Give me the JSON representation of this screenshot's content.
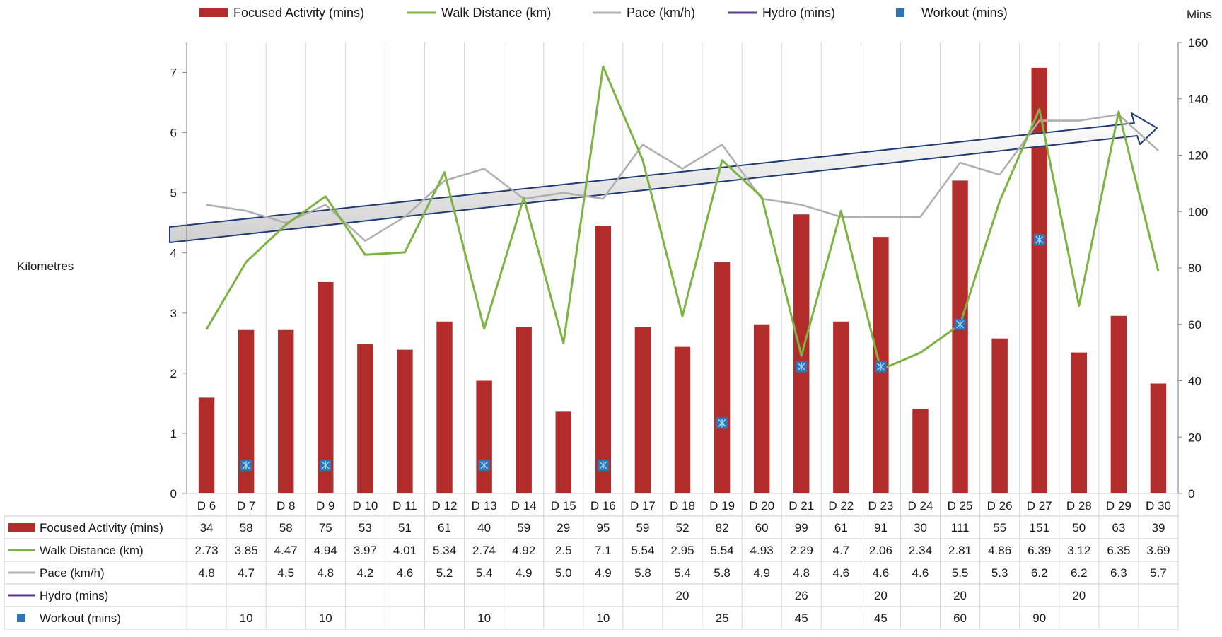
{
  "chart_data": {
    "type": "bar",
    "categories": [
      "D 6",
      "D 7",
      "D 8",
      "D 9",
      "D 10",
      "D 11",
      "D 12",
      "D 13",
      "D 14",
      "D 15",
      "D 16",
      "D 17",
      "D 18",
      "D 19",
      "D 20",
      "D 21",
      "D 22",
      "D 23",
      "D 24",
      "D 25",
      "D 26",
      "D 27",
      "D 28",
      "D 29",
      "D 30"
    ],
    "series": [
      {
        "name": "Focused Activity (mins)",
        "kind": "bar",
        "axis": "right",
        "color": "#B22C2C",
        "values": [
          34,
          58,
          58,
          75,
          53,
          51,
          61,
          40,
          59,
          29,
          95,
          59,
          52,
          82,
          60,
          99,
          61,
          91,
          30,
          111,
          55,
          151,
          50,
          63,
          39
        ]
      },
      {
        "name": "Walk Distance (km)",
        "kind": "line",
        "axis": "left",
        "color": "#7CB342",
        "values": [
          2.73,
          3.85,
          4.47,
          4.94,
          3.97,
          4.01,
          5.34,
          2.74,
          4.92,
          2.5,
          7.1,
          5.54,
          2.95,
          5.54,
          4.93,
          2.29,
          4.7,
          2.06,
          2.34,
          2.81,
          4.86,
          6.39,
          3.12,
          6.35,
          3.69
        ]
      },
      {
        "name": "Pace (km/h)",
        "kind": "line",
        "axis": "left",
        "color": "#B0B0B0",
        "values": [
          "4.8",
          "4.7",
          "4.5",
          "4.8",
          "4.2",
          "4.6",
          "5.2",
          "5.4",
          "4.9",
          "5.0",
          "4.9",
          "5.8",
          "5.4",
          "5.8",
          "4.9",
          "4.8",
          "4.6",
          "4.6",
          "4.6",
          "5.5",
          "5.3",
          "6.2",
          "6.2",
          "6.3",
          "5.7"
        ]
      },
      {
        "name": "Hydro (mins)",
        "kind": "line",
        "axis": "right",
        "color": "#5B3A8C",
        "values": [
          null,
          null,
          null,
          null,
          null,
          null,
          null,
          null,
          null,
          null,
          null,
          null,
          20,
          null,
          null,
          26,
          null,
          20,
          null,
          20,
          null,
          null,
          20,
          null,
          null
        ]
      },
      {
        "name": "Workout (mins)",
        "kind": "marker",
        "axis": "right",
        "color": "#2E75B6",
        "values": [
          null,
          10,
          null,
          10,
          null,
          null,
          null,
          10,
          null,
          null,
          10,
          null,
          null,
          25,
          null,
          45,
          null,
          45,
          null,
          60,
          null,
          90,
          null,
          null,
          null
        ]
      }
    ],
    "y_left": {
      "label": "Kilometres",
      "lim": [
        0,
        7.5
      ],
      "ticks": [
        0,
        1,
        2,
        3,
        4,
        5,
        6,
        7
      ]
    },
    "y_right": {
      "label": "Mins",
      "lim": [
        0,
        160
      ],
      "ticks": [
        0,
        20,
        40,
        60,
        80,
        100,
        120,
        140,
        160
      ]
    },
    "legend_position": "top",
    "grid": "vertical",
    "data_table": true
  }
}
